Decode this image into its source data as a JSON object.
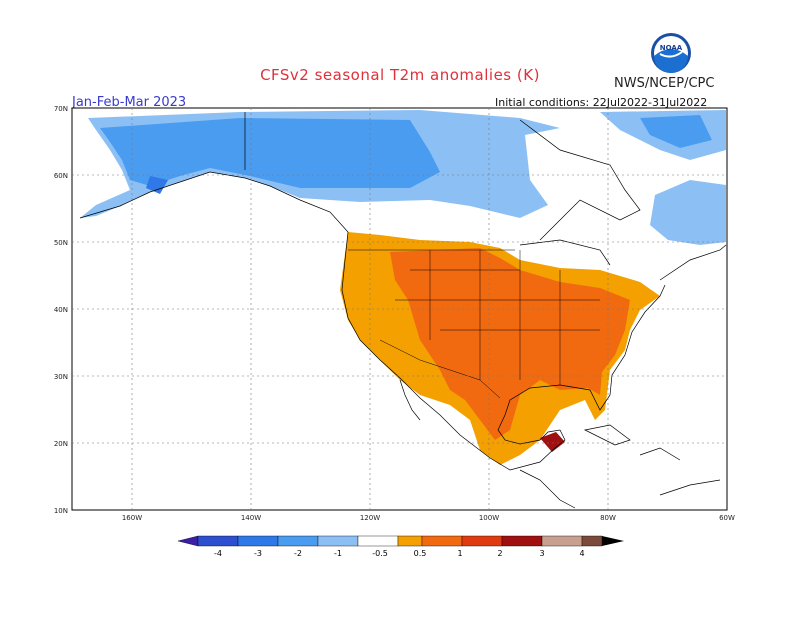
{
  "header": {
    "title": "CFSv2 seasonal T2m anomalies (K)",
    "org": "NWS/NCEP/CPC",
    "logo_text": "NOAA",
    "period": "Jan-Feb-Mar 2023",
    "init": "Initial conditions: 22Jul2022-31Jul2022"
  },
  "map": {
    "lat_ticks": [
      "70N",
      "60N",
      "50N",
      "40N",
      "30N",
      "20N",
      "10N"
    ],
    "lon_ticks": [
      "160W",
      "140W",
      "120W",
      "100W",
      "80W",
      "60W"
    ]
  },
  "colorbar": {
    "labels": [
      "-4",
      "-3",
      "-2",
      "-1",
      "-0.5",
      "0.5",
      "1",
      "2",
      "3",
      "4"
    ],
    "colors": [
      "#3b1fa6",
      "#2d4fd0",
      "#2f78e8",
      "#4a9cf0",
      "#8cc0f5",
      "#ffffff",
      "#f3a000",
      "#f26a10",
      "#e03a10",
      "#a01010",
      "#c8a090",
      "#7b4a3a"
    ]
  }
}
